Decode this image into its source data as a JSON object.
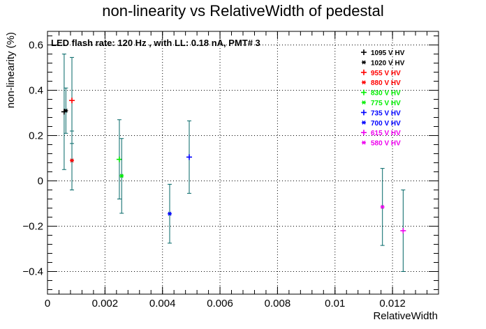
{
  "chart_data": {
    "type": "scatter",
    "title": "non-linearity vs RelativeWidth of pedestal",
    "xlabel": "RelativeWidth",
    "ylabel": "non-linearity (%)",
    "annotation": "LED flash rate: 120 Hz , with LL: 0.18 nA, PMT# 3",
    "xlim": [
      0,
      0.0136
    ],
    "ylim": [
      -0.5,
      0.66
    ],
    "xticks": [
      0,
      0.002,
      0.004,
      0.006,
      0.008,
      0.01,
      0.012
    ],
    "xtick_labels": [
      "0",
      "0.002",
      "0.004",
      "0.006",
      "0.008",
      "0.01",
      "0.012"
    ],
    "yticks": [
      -0.4,
      -0.2,
      0,
      0.2,
      0.4,
      0.6
    ],
    "ytick_labels": [
      "−0.4",
      "−0.2",
      "0",
      "0.2",
      "0.4",
      "0.6"
    ],
    "grid": true,
    "legend_position": "top-right",
    "error_bar_color": "#006666",
    "series": [
      {
        "name": "1095 V HV",
        "color": "#000000",
        "marker": "+",
        "points": [
          {
            "x": 0.00058,
            "y": 0.305,
            "err": 0.255
          }
        ]
      },
      {
        "name": "1020 V HV",
        "color": "#000000",
        "marker": "*",
        "points": [
          {
            "x": 0.00064,
            "y": 0.31,
            "err": 0.1
          }
        ]
      },
      {
        "name": "955 V HV",
        "color": "#ff0000",
        "marker": "+",
        "points": [
          {
            "x": 0.00085,
            "y": 0.355,
            "err": 0.19
          }
        ]
      },
      {
        "name": "880 V HV",
        "color": "#ff0000",
        "marker": "*",
        "points": [
          {
            "x": 0.00085,
            "y": 0.09,
            "err": 0.13
          }
        ]
      },
      {
        "name": "830 V HV",
        "color": "#00ee00",
        "marker": "+",
        "points": [
          {
            "x": 0.0025,
            "y": 0.095,
            "err": 0.175
          }
        ]
      },
      {
        "name": "775 V HV",
        "color": "#00ee00",
        "marker": "*",
        "points": [
          {
            "x": 0.00258,
            "y": 0.022,
            "err": 0.165
          }
        ]
      },
      {
        "name": "735 V HV",
        "color": "#0000ff",
        "marker": "+",
        "points": [
          {
            "x": 0.00493,
            "y": 0.105,
            "err": 0.16
          }
        ]
      },
      {
        "name": "700 V HV",
        "color": "#0000ff",
        "marker": "*",
        "points": [
          {
            "x": 0.00425,
            "y": -0.145,
            "err": 0.13
          }
        ]
      },
      {
        "name": "615 V HV",
        "color": "#ee00ee",
        "marker": "+",
        "points": [
          {
            "x": 0.01237,
            "y": -0.22,
            "err": 0.18
          }
        ]
      },
      {
        "name": "580 V HV",
        "color": "#ee00ee",
        "marker": "*",
        "points": [
          {
            "x": 0.01165,
            "y": -0.115,
            "err": 0.17
          }
        ]
      }
    ]
  }
}
